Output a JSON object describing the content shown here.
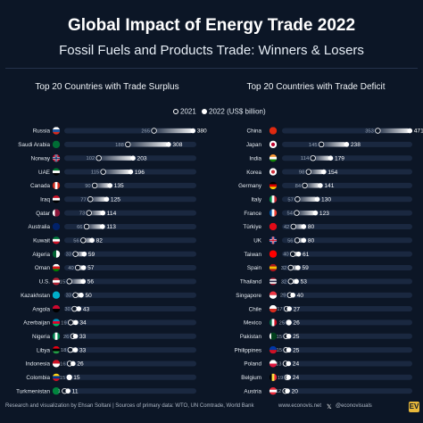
{
  "title": "Global Impact of Energy Trade 2022",
  "subtitle": "Fossil Fuels and Products Trade: Winners & Losers",
  "legend": {
    "y2021": "2021",
    "y2022": "2022",
    "unit": "(US$ billion)"
  },
  "footer": {
    "credit": "Research and visualization by Ehsan Soltani | Sources of primary data: WTO, UN Comtrade, World Bank",
    "website": "www.econovis.net",
    "handle": "@econovisuals",
    "logo": "EV"
  },
  "colors": {
    "background": "#0c1626",
    "bar": "#1a2840",
    "bar_fill": "#ffffff",
    "text": "#e8eef6"
  },
  "chart_data": [
    {
      "type": "bar",
      "title": "Top 20 Countries with Trade Surplus",
      "categories": [
        "Russia",
        "Saudi Arabia",
        "Norway",
        "UAE",
        "Canada",
        "Iraq",
        "Qatar",
        "Australia",
        "Kuwait",
        "Algeria",
        "Oman",
        "U.S.",
        "Kazakhstan",
        "Angola",
        "Azerbaijan",
        "Nigeria",
        "Libya",
        "Indonesia",
        "Colombia",
        "Turkmenistan"
      ],
      "series": [
        {
          "name": "2021",
          "values": [
            265,
            188,
            102,
            115,
            90,
            77,
            73,
            66,
            56,
            33,
            40,
            15,
            33,
            30,
            19,
            26,
            18,
            16,
            15,
            1
          ]
        },
        {
          "name": "2022",
          "values": [
            380,
            308,
            203,
            196,
            135,
            125,
            114,
            113,
            82,
            59,
            57,
            56,
            50,
            43,
            34,
            33,
            33,
            26,
            15,
            11
          ]
        }
      ],
      "flags": [
        "russia",
        "saudi-arabia",
        "norway",
        "uae",
        "canada",
        "iraq",
        "qatar",
        "australia",
        "kuwait",
        "algeria",
        "oman",
        "us",
        "kazakhstan",
        "angola",
        "azerbaijan",
        "nigeria",
        "libya",
        "indonesia",
        "colombia",
        "turkmenistan"
      ]
    },
    {
      "type": "bar",
      "title": "Top 20 Countries with Trade Deficit",
      "categories": [
        "China",
        "Japan",
        "India",
        "Korea",
        "Germany",
        "Italy",
        "France",
        "Türkiye",
        "UK",
        "Taiwan",
        "Spain",
        "Thailand",
        "Singapore",
        "Chile",
        "Mexico",
        "Pakistan",
        "Philippines",
        "Poland",
        "Belgium",
        "Austria"
      ],
      "series": [
        {
          "name": "2021",
          "values": [
            353,
            145,
            114,
            98,
            84,
            57,
            54,
            42,
            56,
            40,
            32,
            32,
            29,
            17,
            25,
            15,
            15,
            13,
            19,
            12
          ]
        },
        {
          "name": "2022",
          "values": [
            471,
            238,
            179,
            154,
            141,
            130,
            123,
            80,
            80,
            61,
            59,
            53,
            40,
            27,
            26,
            25,
            25,
            24,
            24,
            20
          ]
        }
      ],
      "flags": [
        "china",
        "japan",
        "india",
        "korea",
        "germany",
        "italy",
        "france",
        "turkiye",
        "uk",
        "taiwan",
        "spain",
        "thailand",
        "singapore",
        "chile",
        "mexico",
        "pakistan",
        "philippines",
        "poland",
        "belgium",
        "austria"
      ]
    }
  ]
}
